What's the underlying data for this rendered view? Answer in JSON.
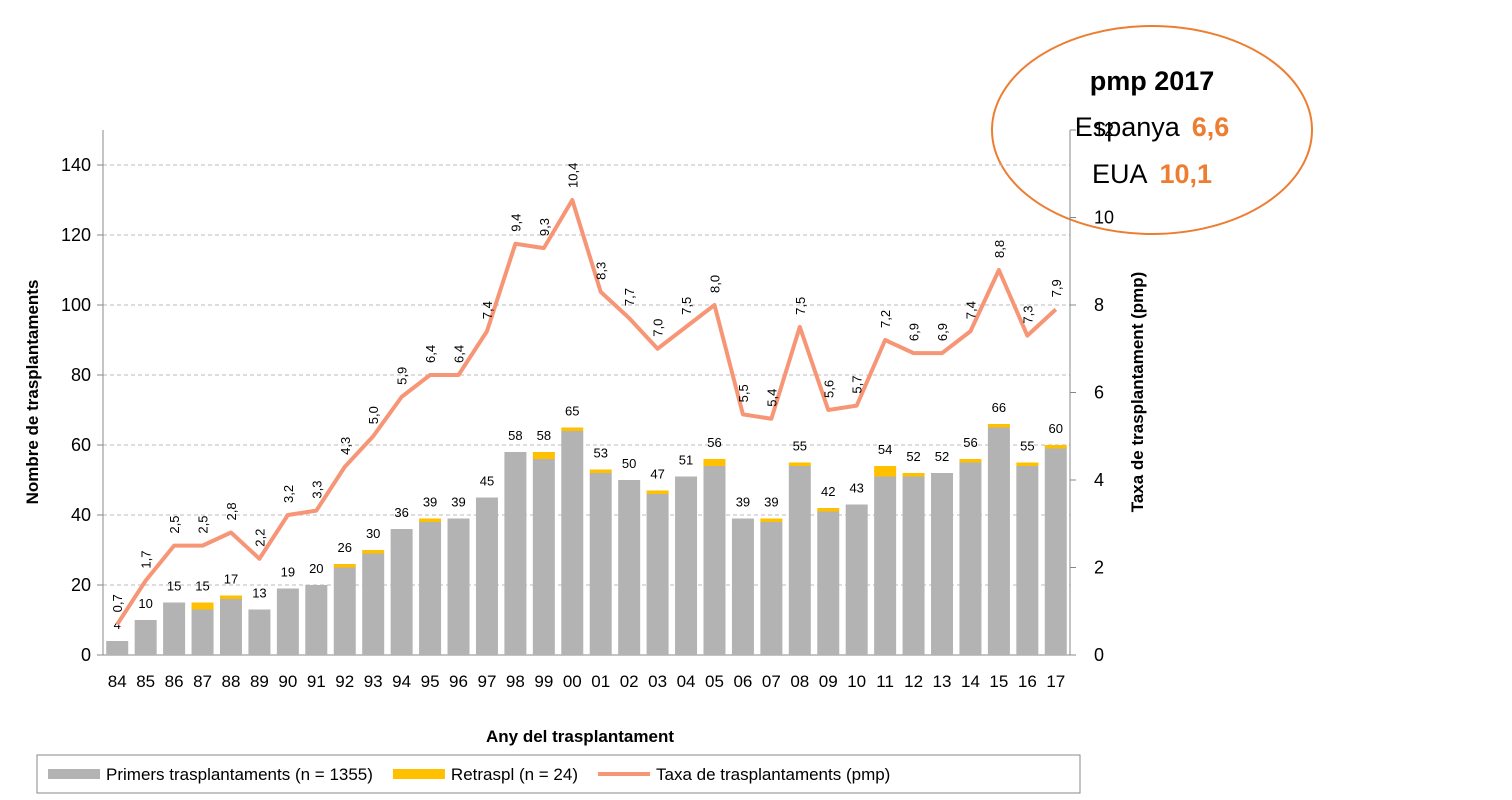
{
  "chart_data": {
    "type": "bar_line",
    "xlabel": "Any del trasplantament",
    "ylabel": "Nombre de trasplantaments",
    "y2label": "Taxa de trasplantament (pmp)",
    "categories": [
      "84",
      "85",
      "86",
      "87",
      "88",
      "89",
      "90",
      "91",
      "92",
      "93",
      "94",
      "95",
      "96",
      "97",
      "98",
      "99",
      "00",
      "01",
      "02",
      "03",
      "04",
      "05",
      "06",
      "07",
      "08",
      "09",
      "10",
      "11",
      "12",
      "13",
      "14",
      "15",
      "16",
      "17"
    ],
    "series": [
      {
        "name": "Primers trasplantaments (n = 1355)",
        "color": "#b3b3b3",
        "kind": "bar",
        "values": [
          4,
          10,
          15,
          13,
          16,
          13,
          19,
          20,
          25,
          29,
          36,
          38,
          39,
          45,
          58,
          56,
          64,
          52,
          50,
          46,
          51,
          54,
          39,
          38,
          54,
          41,
          43,
          51,
          51,
          52,
          55,
          65,
          54,
          59
        ]
      },
      {
        "name": "Retraspl (n = 24)",
        "color": "#ffc000",
        "kind": "bar",
        "values": [
          0,
          0,
          0,
          2,
          1,
          0,
          0,
          0,
          1,
          1,
          0,
          1,
          0,
          0,
          0,
          2,
          1,
          1,
          0,
          1,
          0,
          2,
          0,
          1,
          1,
          1,
          0,
          3,
          1,
          0,
          1,
          1,
          1,
          1
        ]
      },
      {
        "name": "Taxa de trasplantaments (pmp)",
        "color": "#f79676",
        "kind": "line",
        "axis": "y2",
        "values": [
          0.7,
          1.7,
          2.5,
          2.5,
          2.8,
          2.2,
          3.2,
          3.3,
          4.3,
          5.0,
          5.9,
          6.4,
          6.4,
          7.4,
          9.4,
          9.3,
          10.4,
          8.3,
          7.7,
          7.0,
          7.5,
          8.0,
          5.5,
          5.4,
          7.5,
          5.6,
          5.7,
          7.2,
          6.9,
          6.9,
          7.4,
          8.8,
          7.3,
          7.9
        ],
        "value_labels": [
          "0,7",
          "1,7",
          "2,5",
          "2,5",
          "2,8",
          "2,2",
          "3,2",
          "3,3",
          "4,3",
          "5,0",
          "5,9",
          "6,4",
          "6,4",
          "7,4",
          "9,4",
          "9,3",
          "10,4",
          "8,3",
          "7,7",
          "7,0",
          "7,5",
          "8,0",
          "5,5",
          "5,4",
          "7,5",
          "5,6",
          "5,7",
          "7,2",
          "6,9",
          "6,9",
          "7,4",
          "8,8",
          "7,3",
          "7,9"
        ]
      }
    ],
    "totals": [
      4,
      10,
      15,
      15,
      17,
      13,
      19,
      20,
      26,
      30,
      36,
      39,
      39,
      45,
      58,
      58,
      65,
      53,
      50,
      47,
      51,
      56,
      39,
      39,
      55,
      42,
      43,
      54,
      52,
      52,
      56,
      66,
      55,
      60
    ],
    "ylim": [
      0,
      150
    ],
    "yticks": [
      0,
      20,
      40,
      60,
      80,
      100,
      120,
      140
    ],
    "y2lim": [
      0,
      12
    ],
    "y2ticks": [
      0,
      2,
      4,
      6,
      8,
      10,
      12
    ],
    "grid": true,
    "legend": "bottom",
    "annotation": {
      "title": "pmp 2017",
      "rows": [
        {
          "label": "Espanya",
          "value": "6,6"
        },
        {
          "label": "EUA",
          "value": "10,1"
        }
      ]
    }
  }
}
